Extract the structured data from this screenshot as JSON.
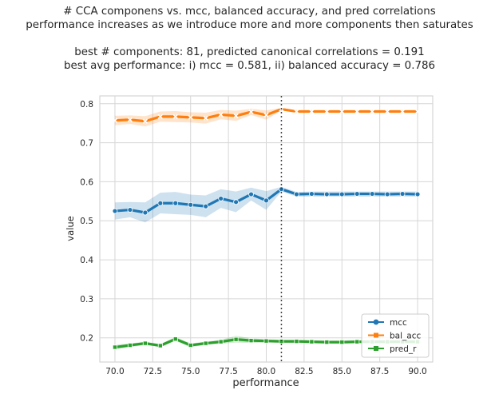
{
  "title": {
    "line1": "# CCA componens vs. mcc, balanced accuracy, and pred correlations",
    "line2": "performance increases as we introduce more and more components then saturates",
    "line3": "",
    "line4": "best # components: 81,  predicted canonical correlations = 0.191",
    "line5": "best avg performance:  i) mcc = 0.581,  ii) balanced accuracy = 0.786"
  },
  "chart_data": {
    "type": "line",
    "xlabel": "performance",
    "ylabel": "value",
    "xlim": [
      69.0,
      91.0
    ],
    "ylim": [
      0.138,
      0.82
    ],
    "xticks": [
      70.0,
      72.5,
      75.0,
      77.5,
      80.0,
      82.5,
      85.0,
      87.5,
      90.0
    ],
    "xtick_labels": [
      "70.0",
      "72.5",
      "75.0",
      "77.5",
      "80.0",
      "82.5",
      "85.0",
      "87.5",
      "90.0"
    ],
    "yticks": [
      0.2,
      0.3,
      0.4,
      0.5,
      0.6,
      0.7,
      0.8
    ],
    "ytick_labels": [
      "0.2",
      "0.3",
      "0.4",
      "0.5",
      "0.6",
      "0.7",
      "0.8"
    ],
    "grid": true,
    "vline_x": 81,
    "legend_position": "lower-right",
    "x": [
      70,
      71,
      72,
      73,
      74,
      75,
      76,
      77,
      78,
      79,
      80,
      81,
      82,
      83,
      84,
      85,
      86,
      87,
      88,
      89,
      90
    ],
    "series": [
      {
        "name": "mcc",
        "color": "#1f77b4",
        "marker": "circle",
        "values": [
          0.525,
          0.528,
          0.521,
          0.545,
          0.545,
          0.541,
          0.537,
          0.557,
          0.548,
          0.568,
          0.552,
          0.581,
          0.568,
          0.569,
          0.568,
          0.568,
          0.569,
          0.569,
          0.568,
          0.569,
          0.568
        ],
        "lower": [
          0.503,
          0.509,
          0.496,
          0.519,
          0.517,
          0.515,
          0.509,
          0.533,
          0.522,
          0.552,
          0.528,
          0.575,
          0.562,
          0.562,
          0.562,
          0.562,
          0.562,
          0.562,
          0.562,
          0.562,
          0.562
        ],
        "upper": [
          0.547,
          0.548,
          0.547,
          0.572,
          0.574,
          0.567,
          0.565,
          0.581,
          0.575,
          0.585,
          0.576,
          0.587,
          0.574,
          0.575,
          0.575,
          0.575,
          0.575,
          0.575,
          0.575,
          0.575,
          0.575
        ]
      },
      {
        "name": "bal_acc",
        "color": "#ff7f0e",
        "marker": "x",
        "values": [
          0.757,
          0.759,
          0.755,
          0.767,
          0.767,
          0.765,
          0.763,
          0.772,
          0.769,
          0.779,
          0.771,
          0.786,
          0.78,
          0.78,
          0.78,
          0.78,
          0.78,
          0.78,
          0.78,
          0.78,
          0.78
        ],
        "lower": [
          0.745,
          0.748,
          0.742,
          0.754,
          0.753,
          0.752,
          0.749,
          0.76,
          0.756,
          0.771,
          0.759,
          0.783,
          0.777,
          0.777,
          0.777,
          0.777,
          0.777,
          0.777,
          0.777,
          0.777,
          0.777
        ],
        "upper": [
          0.769,
          0.77,
          0.768,
          0.78,
          0.781,
          0.778,
          0.777,
          0.784,
          0.782,
          0.787,
          0.783,
          0.789,
          0.783,
          0.783,
          0.783,
          0.783,
          0.783,
          0.783,
          0.783,
          0.783,
          0.783
        ]
      },
      {
        "name": "pred_r",
        "color": "#2ca02c",
        "marker": "square",
        "values": [
          0.176,
          0.181,
          0.186,
          0.18,
          0.197,
          0.181,
          0.186,
          0.19,
          0.196,
          0.193,
          0.192,
          0.191,
          0.191,
          0.19,
          0.189,
          0.189,
          0.19,
          0.19,
          0.19,
          0.19,
          0.19
        ],
        "lower": [
          0.17,
          0.176,
          0.182,
          0.176,
          0.192,
          0.176,
          0.182,
          0.185,
          0.188,
          0.187,
          0.188,
          0.187,
          0.187,
          0.186,
          0.185,
          0.185,
          0.186,
          0.186,
          0.186,
          0.186,
          0.186
        ],
        "upper": [
          0.182,
          0.186,
          0.19,
          0.184,
          0.202,
          0.186,
          0.19,
          0.195,
          0.205,
          0.199,
          0.196,
          0.195,
          0.195,
          0.194,
          0.193,
          0.193,
          0.194,
          0.194,
          0.194,
          0.194,
          0.194
        ]
      }
    ]
  }
}
